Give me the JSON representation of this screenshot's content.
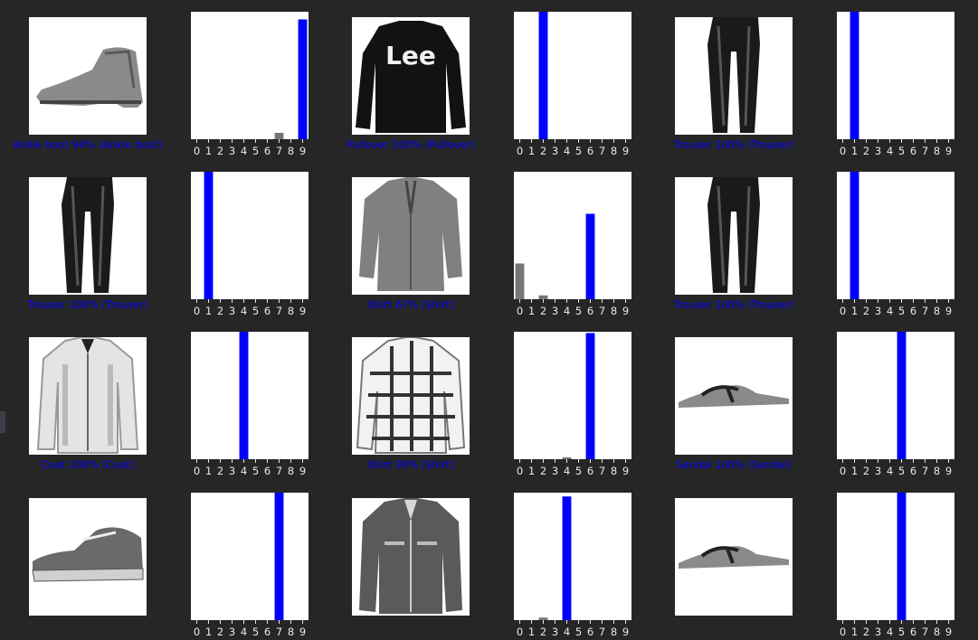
{
  "colors": {
    "background": "#262626",
    "correct": "#0000ff",
    "other_bar": "#777777",
    "plot_bg": "#ffffff",
    "tick_text": "#e8e8e8"
  },
  "items": [
    {
      "caption": "Ankle boot 94% (Ankle boot)",
      "image_icon": "ankle-boot-image",
      "label_index": 9
    },
    {
      "caption": "Pullover 100% (Pullover)",
      "image_icon": "pullover-image",
      "label_index": 2
    },
    {
      "caption": "Trouser 100% (Trouser)",
      "image_icon": "trouser-image",
      "label_index": 1
    },
    {
      "caption": "Trouser 100% (Trouser)",
      "image_icon": "trouser-image",
      "label_index": 1
    },
    {
      "caption": "Shirt 67% (Shirt)",
      "image_icon": "shirt-image",
      "label_index": 6
    },
    {
      "caption": "Trouser 100% (Trouser)",
      "image_icon": "trouser-image",
      "label_index": 1
    },
    {
      "caption": "Coat 100% (Coat)",
      "image_icon": "coat-image",
      "label_index": 4
    },
    {
      "caption": "Shirt 99% (Shirt)",
      "image_icon": "plaid-shirt-image",
      "label_index": 6
    },
    {
      "caption": "Sandal 100% (Sandal)",
      "image_icon": "sandal-image",
      "label_index": 5
    },
    {
      "caption": "",
      "image_icon": "sneaker-image",
      "label_index": 7
    },
    {
      "caption": "",
      "image_icon": "jacket-image",
      "label_index": 4
    },
    {
      "caption": "",
      "image_icon": "sandal-image",
      "label_index": 5
    }
  ],
  "chart_data": [
    {
      "type": "bar",
      "categories": [
        "0",
        "1",
        "2",
        "3",
        "4",
        "5",
        "6",
        "7",
        "8",
        "9"
      ],
      "values": [
        0,
        0,
        0,
        0,
        0,
        0,
        0,
        0.05,
        0,
        0.94
      ],
      "ylim": [
        0,
        1
      ]
    },
    {
      "type": "bar",
      "categories": [
        "0",
        "1",
        "2",
        "3",
        "4",
        "5",
        "6",
        "7",
        "8",
        "9"
      ],
      "values": [
        0,
        0,
        1.0,
        0,
        0,
        0,
        0,
        0,
        0,
        0
      ],
      "ylim": [
        0,
        1
      ]
    },
    {
      "type": "bar",
      "categories": [
        "0",
        "1",
        "2",
        "3",
        "4",
        "5",
        "6",
        "7",
        "8",
        "9"
      ],
      "values": [
        0,
        1.0,
        0,
        0,
        0,
        0,
        0,
        0,
        0,
        0
      ],
      "ylim": [
        0,
        1
      ]
    },
    {
      "type": "bar",
      "categories": [
        "0",
        "1",
        "2",
        "3",
        "4",
        "5",
        "6",
        "7",
        "8",
        "9"
      ],
      "values": [
        0,
        1.0,
        0,
        0,
        0,
        0,
        0,
        0,
        0,
        0
      ],
      "ylim": [
        0,
        1
      ]
    },
    {
      "type": "bar",
      "categories": [
        "0",
        "1",
        "2",
        "3",
        "4",
        "5",
        "6",
        "7",
        "8",
        "9"
      ],
      "values": [
        0.28,
        0,
        0.03,
        0,
        0,
        0,
        0.67,
        0,
        0,
        0
      ],
      "ylim": [
        0,
        1
      ]
    },
    {
      "type": "bar",
      "categories": [
        "0",
        "1",
        "2",
        "3",
        "4",
        "5",
        "6",
        "7",
        "8",
        "9"
      ],
      "values": [
        0,
        1.0,
        0,
        0,
        0,
        0,
        0,
        0,
        0,
        0
      ],
      "ylim": [
        0,
        1
      ]
    },
    {
      "type": "bar",
      "categories": [
        "0",
        "1",
        "2",
        "3",
        "4",
        "5",
        "6",
        "7",
        "8",
        "9"
      ],
      "values": [
        0,
        0,
        0,
        0,
        1.0,
        0,
        0,
        0,
        0,
        0
      ],
      "ylim": [
        0,
        1
      ]
    },
    {
      "type": "bar",
      "categories": [
        "0",
        "1",
        "2",
        "3",
        "4",
        "5",
        "6",
        "7",
        "8",
        "9"
      ],
      "values": [
        0,
        0,
        0,
        0,
        0.01,
        0,
        0.99,
        0,
        0,
        0
      ],
      "ylim": [
        0,
        1
      ]
    },
    {
      "type": "bar",
      "categories": [
        "0",
        "1",
        "2",
        "3",
        "4",
        "5",
        "6",
        "7",
        "8",
        "9"
      ],
      "values": [
        0,
        0,
        0,
        0,
        0,
        1.0,
        0,
        0,
        0,
        0
      ],
      "ylim": [
        0,
        1
      ]
    },
    {
      "type": "bar",
      "categories": [
        "0",
        "1",
        "2",
        "3",
        "4",
        "5",
        "6",
        "7",
        "8",
        "9"
      ],
      "values": [
        0,
        0,
        0,
        0,
        0,
        0,
        0,
        1.0,
        0,
        0
      ],
      "ylim": [
        0,
        1
      ]
    },
    {
      "type": "bar",
      "categories": [
        "0",
        "1",
        "2",
        "3",
        "4",
        "5",
        "6",
        "7",
        "8",
        "9"
      ],
      "values": [
        0,
        0,
        0.02,
        0,
        0.97,
        0,
        0,
        0,
        0,
        0
      ],
      "ylim": [
        0,
        1
      ]
    },
    {
      "type": "bar",
      "categories": [
        "0",
        "1",
        "2",
        "3",
        "4",
        "5",
        "6",
        "7",
        "8",
        "9"
      ],
      "values": [
        0,
        0,
        0,
        0,
        0,
        1.0,
        0,
        0,
        0,
        0
      ],
      "ylim": [
        0,
        1
      ]
    }
  ]
}
